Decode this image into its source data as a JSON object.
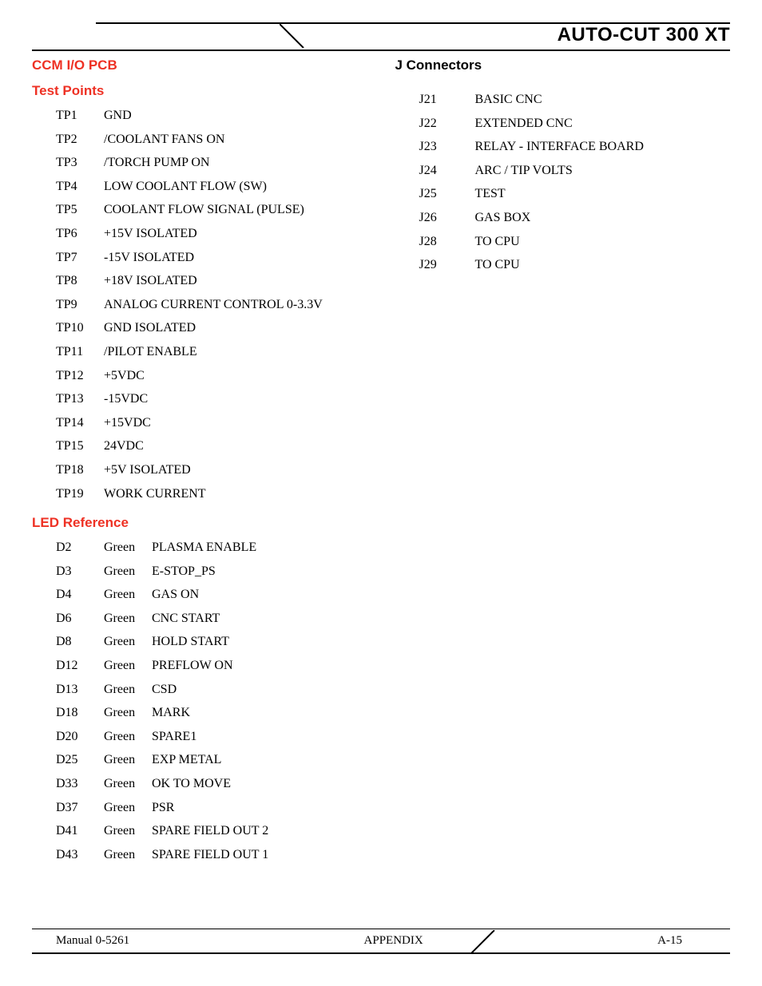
{
  "header": {
    "title": "AUTO-CUT 300 XT"
  },
  "left": {
    "pcb_heading": "CCM I/O PCB",
    "tp_heading": "Test Points",
    "test_points": [
      {
        "id": "TP1",
        "desc": "GND"
      },
      {
        "id": "TP2",
        "desc": "/COOLANT FANS ON"
      },
      {
        "id": "TP3",
        "desc": "/TORCH PUMP ON"
      },
      {
        "id": "TP4",
        "desc": "LOW COOLANT FLOW (SW)"
      },
      {
        "id": "TP5",
        "desc": "COOLANT FLOW SIGNAL (PULSE)"
      },
      {
        "id": "TP6",
        "desc": "+15V ISOLATED"
      },
      {
        "id": "TP7",
        "desc": "-15V ISOLATED"
      },
      {
        "id": "TP8",
        "desc": "+18V ISOLATED"
      },
      {
        "id": "TP9",
        "desc": "ANALOG CURRENT CONTROL 0-3.3V"
      },
      {
        "id": "TP10",
        "desc": "GND ISOLATED"
      },
      {
        "id": "TP11",
        "desc": "/PILOT ENABLE"
      },
      {
        "id": "TP12",
        "desc": "+5VDC"
      },
      {
        "id": "TP13",
        "desc": "-15VDC"
      },
      {
        "id": "TP14",
        "desc": "+15VDC"
      },
      {
        "id": "TP15",
        "desc": "24VDC"
      },
      {
        "id": "TP18",
        "desc": "+5V ISOLATED"
      },
      {
        "id": "TP19",
        "desc": "WORK CURRENT"
      }
    ],
    "led_heading": "LED Reference",
    "leds": [
      {
        "id": "D2",
        "color": "Green",
        "desc": "PLASMA ENABLE"
      },
      {
        "id": "D3",
        "color": "Green",
        "desc": "E-STOP_PS"
      },
      {
        "id": "D4",
        "color": "Green",
        "desc": "GAS ON"
      },
      {
        "id": "D6",
        "color": "Green",
        "desc": "CNC START"
      },
      {
        "id": "D8",
        "color": "Green",
        "desc": "HOLD START"
      },
      {
        "id": "D12",
        "color": "Green",
        "desc": "PREFLOW ON"
      },
      {
        "id": "D13",
        "color": "Green",
        "desc": "CSD"
      },
      {
        "id": "D18",
        "color": "Green",
        "desc": "MARK"
      },
      {
        "id": "D20",
        "color": "Green",
        "desc": "SPARE1"
      },
      {
        "id": "D25",
        "color": "Green",
        "desc": "EXP METAL"
      },
      {
        "id": "D33",
        "color": "Green",
        "desc": "OK TO MOVE"
      },
      {
        "id": "D37",
        "color": "Green",
        "desc": "PSR"
      },
      {
        "id": "D41",
        "color": "Green",
        "desc": "SPARE FIELD OUT 2"
      },
      {
        "id": "D43",
        "color": "Green",
        "desc": "SPARE FIELD OUT 1"
      }
    ]
  },
  "right": {
    "j_heading": "J Connectors",
    "j_connectors": [
      {
        "id": "J21",
        "desc": "BASIC CNC"
      },
      {
        "id": "J22",
        "desc": "EXTENDED CNC"
      },
      {
        "id": "J23",
        "desc": "RELAY - INTERFACE BOARD"
      },
      {
        "id": "J24",
        "desc": "ARC / TIP VOLTS"
      },
      {
        "id": "J25",
        "desc": "TEST"
      },
      {
        "id": "J26",
        "desc": "GAS BOX"
      },
      {
        "id": "J28",
        "desc": "TO CPU"
      },
      {
        "id": "J29",
        "desc": "TO CPU"
      }
    ]
  },
  "footer": {
    "left": "Manual 0-5261",
    "center": "APPENDIX",
    "right": "A-15"
  }
}
